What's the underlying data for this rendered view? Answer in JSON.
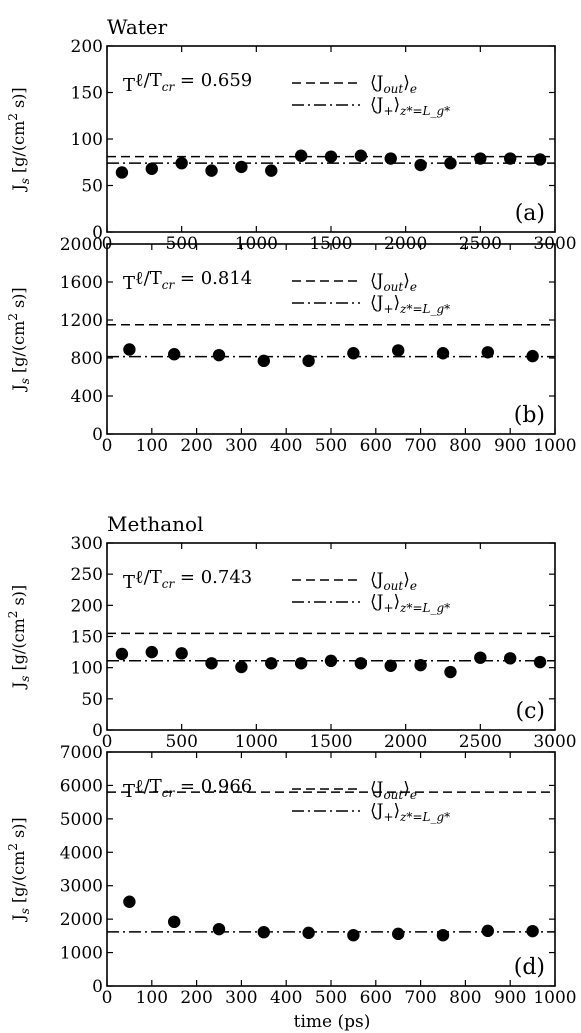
{
  "figure": {
    "xlabel": "time (ps)",
    "ylabel": "J_s [g/(cm^2 s)]",
    "group_titles": [
      "Water",
      "Methanol"
    ]
  },
  "chart_data": [
    {
      "type": "scatter",
      "panel_label": "(a)",
      "group_title": "Water",
      "annotation": "T_ℓ/T_cr = 0.659",
      "xlim": [
        0,
        3000
      ],
      "ylim": [
        0,
        200
      ],
      "xticks": [
        0,
        500,
        1000,
        1500,
        2000,
        2500,
        3000
      ],
      "yticks": [
        0,
        50,
        100,
        150,
        200
      ],
      "points": {
        "x": [
          100,
          300,
          500,
          700,
          900,
          1100,
          1300,
          1500,
          1700,
          1900,
          2100,
          2300,
          2500,
          2700,
          2900
        ],
        "y": [
          64,
          68,
          74,
          66,
          70,
          66,
          82,
          81,
          82,
          79,
          72,
          74,
          79,
          79,
          78
        ]
      },
      "hlines": [
        {
          "name": "⟨J_out⟩_e",
          "style": "dashed",
          "y": 81
        },
        {
          "name": "⟨J_+⟩_{z*=L_g*}",
          "style": "dashdot",
          "y": 74
        }
      ]
    },
    {
      "type": "scatter",
      "panel_label": "(b)",
      "group_title": "",
      "annotation": "T_ℓ/T_cr = 0.814",
      "xlim": [
        0,
        1000
      ],
      "ylim": [
        0,
        2000
      ],
      "xticks": [
        0,
        100,
        200,
        300,
        400,
        500,
        600,
        700,
        800,
        900,
        1000
      ],
      "yticks": [
        0,
        400,
        800,
        1200,
        1600,
        2000
      ],
      "points": {
        "x": [
          50,
          150,
          250,
          350,
          450,
          550,
          650,
          750,
          850,
          950
        ],
        "y": [
          890,
          840,
          830,
          770,
          770,
          850,
          880,
          850,
          860,
          820
        ]
      },
      "hlines": [
        {
          "name": "⟨J_out⟩_e",
          "style": "dashed",
          "y": 1150
        },
        {
          "name": "⟨J_+⟩_{z*=L_g*}",
          "style": "dashdot",
          "y": 815
        }
      ]
    },
    {
      "type": "scatter",
      "panel_label": "(c)",
      "group_title": "Methanol",
      "annotation": "T_ℓ/T_cr = 0.743",
      "xlim": [
        0,
        3000
      ],
      "ylim": [
        0,
        300
      ],
      "xticks": [
        0,
        500,
        1000,
        1500,
        2000,
        2500,
        3000
      ],
      "yticks": [
        0,
        50,
        100,
        150,
        200,
        250,
        300
      ],
      "points": {
        "x": [
          100,
          300,
          500,
          700,
          900,
          1100,
          1300,
          1500,
          1700,
          1900,
          2100,
          2300,
          2500,
          2700,
          2900
        ],
        "y": [
          122,
          125,
          123,
          107,
          101,
          107,
          107,
          111,
          107,
          103,
          104,
          93,
          116,
          115,
          109
        ]
      },
      "hlines": [
        {
          "name": "⟨J_out⟩_e",
          "style": "dashed",
          "y": 155
        },
        {
          "name": "⟨J_+⟩_{z*=L_g*}",
          "style": "dashdot",
          "y": 111
        }
      ]
    },
    {
      "type": "scatter",
      "panel_label": "(d)",
      "group_title": "",
      "annotation": "T_ℓ/T_cr = 0.966",
      "xlim": [
        0,
        1000
      ],
      "ylim": [
        0,
        7000
      ],
      "xticks": [
        0,
        100,
        200,
        300,
        400,
        500,
        600,
        700,
        800,
        900,
        1000
      ],
      "yticks": [
        0,
        1000,
        2000,
        3000,
        4000,
        5000,
        6000,
        7000
      ],
      "points": {
        "x": [
          50,
          150,
          250,
          350,
          450,
          550,
          650,
          750,
          850,
          950
        ],
        "y": [
          2520,
          1920,
          1700,
          1610,
          1590,
          1520,
          1560,
          1520,
          1650,
          1640
        ]
      },
      "hlines": [
        {
          "name": "⟨J_out⟩_e",
          "style": "dashed",
          "y": 5800
        },
        {
          "name": "⟨J_+⟩_{z*=L_g*}",
          "style": "dashdot",
          "y": 1620
        }
      ]
    }
  ]
}
